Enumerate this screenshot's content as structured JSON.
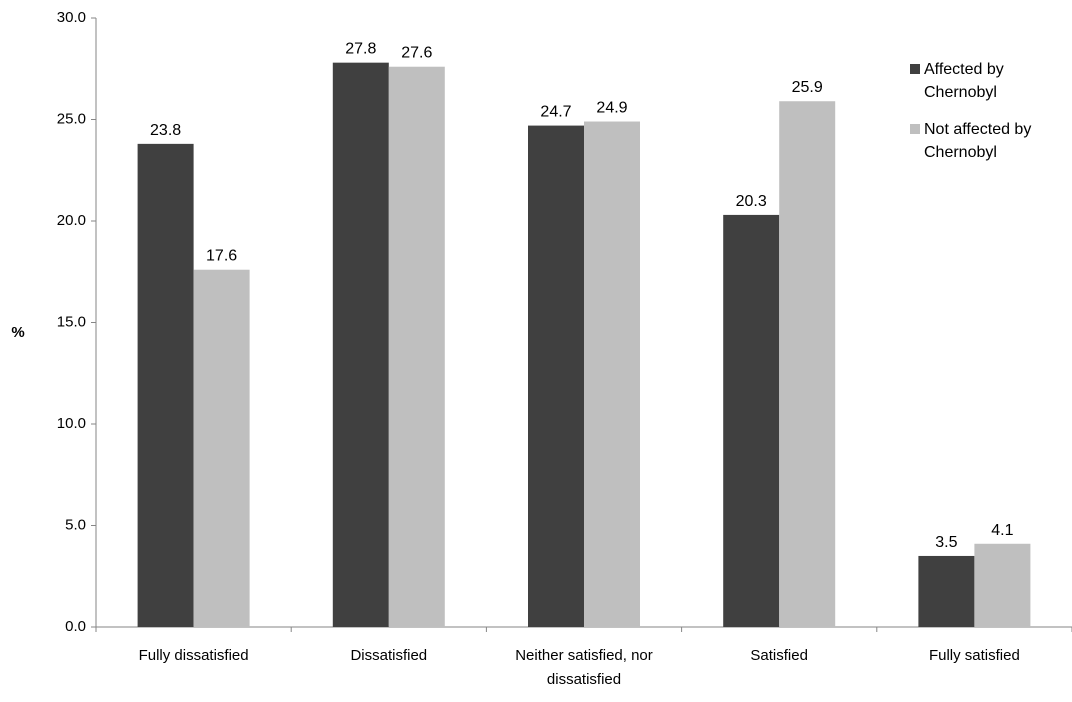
{
  "chart_data": {
    "type": "bar",
    "title": "",
    "xlabel": "",
    "ylabel": "%",
    "ylim": [
      0,
      30
    ],
    "yticks": [
      "0.0",
      "5.0",
      "10.0",
      "15.0",
      "20.0",
      "25.0",
      "30.0"
    ],
    "grid": false,
    "legend_position": "top-right",
    "categories": [
      [
        "Fully dissatisfied"
      ],
      [
        "Dissatisfied"
      ],
      [
        "Neither satisfied, nor",
        "dissatisfied"
      ],
      [
        "Satisfied"
      ],
      [
        "Fully satisfied"
      ]
    ],
    "series": [
      {
        "name": [
          "Affected by",
          "Chernobyl"
        ],
        "color": "#404040",
        "values": [
          23.8,
          27.8,
          24.7,
          20.3,
          3.5
        ],
        "labels": [
          "23.8",
          "27.8",
          "24.7",
          "20.3",
          "3.5"
        ]
      },
      {
        "name": [
          "Not affected by",
          "Chernobyl"
        ],
        "color": "#bfbfbf",
        "values": [
          17.6,
          27.6,
          24.9,
          25.9,
          4.1
        ],
        "labels": [
          "17.6",
          "27.6",
          "24.9",
          "25.9",
          "4.1"
        ]
      }
    ]
  }
}
